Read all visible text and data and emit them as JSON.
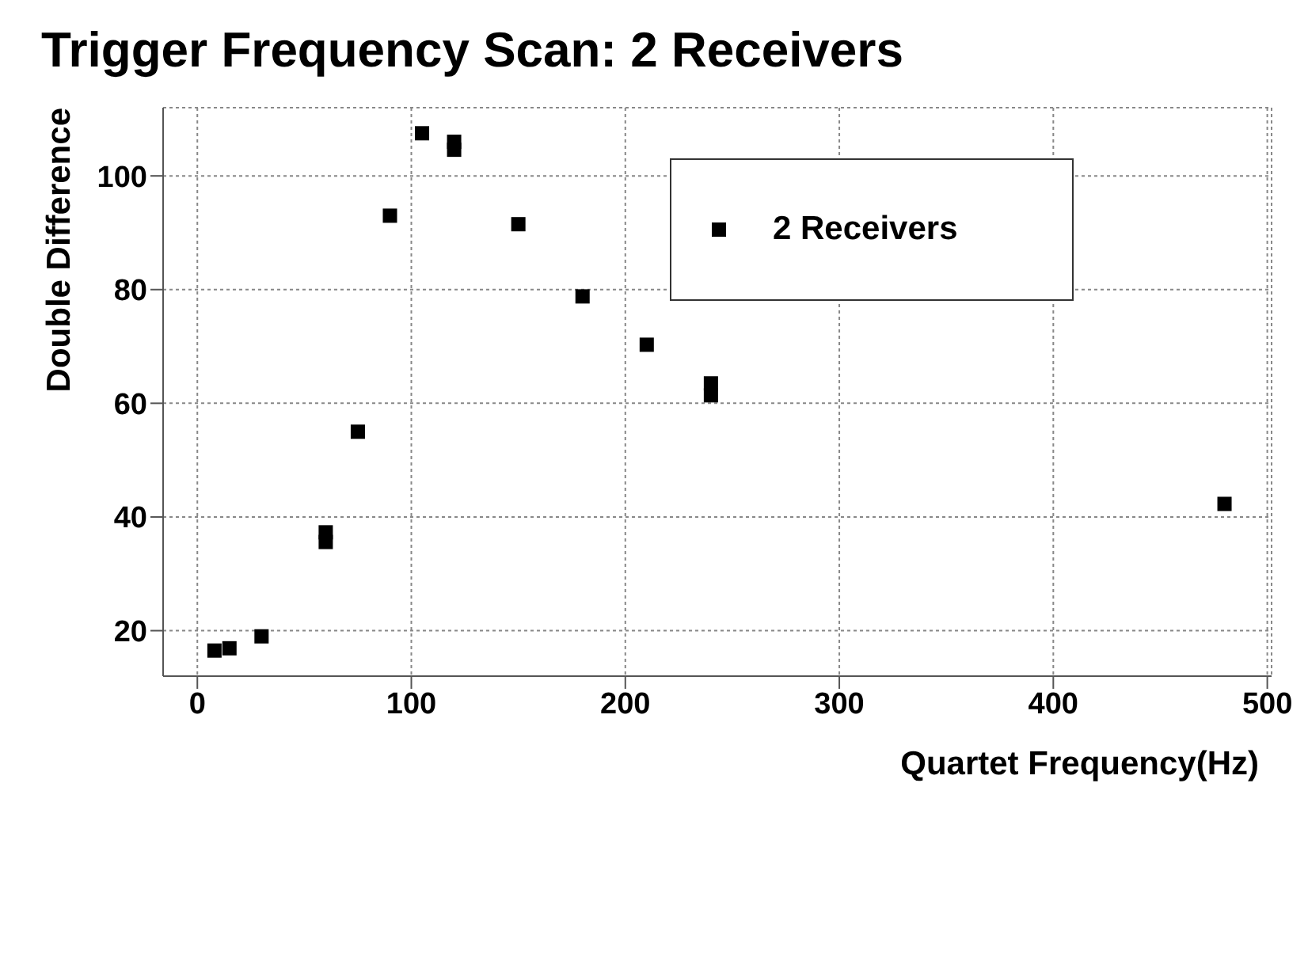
{
  "chart_data": {
    "type": "scatter",
    "title": "Trigger Frequency Scan: 2 Receivers",
    "xlabel": "Quartet Frequency(Hz)",
    "ylabel": "Double Difference",
    "x": [
      8,
      15,
      30,
      60,
      60,
      75,
      90,
      105,
      120,
      120,
      150,
      180,
      210,
      240,
      240,
      480
    ],
    "series": [
      {
        "name": "2 Receivers",
        "color": "#000000",
        "values": [
          16.5,
          16.9,
          19,
          37.3,
          35.6,
          55,
          93,
          107.5,
          106,
          104.6,
          91.5,
          78.8,
          70.3,
          63.5,
          61.4,
          42.3
        ]
      }
    ],
    "xlim": [
      -16,
      502
    ],
    "xticks": [
      0,
      100,
      200,
      300,
      400,
      500
    ],
    "ylim": [
      12,
      112
    ],
    "yticks": [
      20,
      40,
      60,
      80,
      100
    ],
    "grid": true,
    "legend": "top right",
    "marker": "square"
  }
}
